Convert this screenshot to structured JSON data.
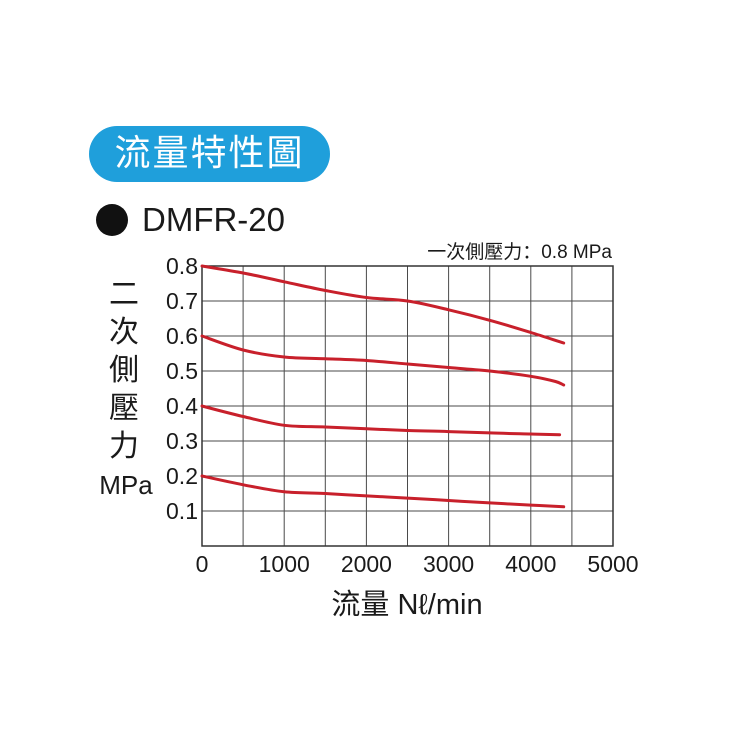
{
  "header": {
    "badge_title": "流量特性圖",
    "model": "DMFR-20"
  },
  "chart_data": {
    "type": "line",
    "annotation": "一次側壓力：0.8 MPa",
    "ylabel_chars": [
      "二",
      "次",
      "側",
      "壓",
      "力"
    ],
    "ylabel_unit": "MPa",
    "xlabel": "流量 Nℓ/min",
    "xlim": [
      0,
      5000
    ],
    "ylim": [
      0,
      0.8
    ],
    "xticks": [
      0,
      1000,
      2000,
      3000,
      4000,
      5000
    ],
    "xtick_labels": [
      "0",
      "1000",
      "2000",
      "3000",
      "4000",
      "5000"
    ],
    "yticks": [
      0.1,
      0.2,
      0.3,
      0.4,
      0.5,
      0.6,
      0.7,
      0.8
    ],
    "ytick_labels": [
      "0.1",
      "0.2",
      "0.3",
      "0.4",
      "0.5",
      "0.6",
      "0.7",
      "0.8"
    ],
    "grid": true,
    "series_color": "#c8202b",
    "series": [
      {
        "x": [
          0,
          500,
          1000,
          1500,
          2000,
          2500,
          3000,
          3500,
          4000,
          4400
        ],
        "y": [
          0.8,
          0.78,
          0.755,
          0.73,
          0.71,
          0.7,
          0.675,
          0.645,
          0.61,
          0.58
        ]
      },
      {
        "x": [
          0,
          500,
          1000,
          1500,
          2000,
          2500,
          3000,
          3500,
          4000,
          4300,
          4400
        ],
        "y": [
          0.6,
          0.56,
          0.54,
          0.535,
          0.53,
          0.52,
          0.51,
          0.5,
          0.485,
          0.47,
          0.46
        ]
      },
      {
        "x": [
          0,
          500,
          1000,
          1500,
          2000,
          2500,
          3000,
          3500,
          4000,
          4350
        ],
        "y": [
          0.4,
          0.37,
          0.345,
          0.34,
          0.335,
          0.33,
          0.327,
          0.323,
          0.32,
          0.318
        ]
      },
      {
        "x": [
          0,
          500,
          1000,
          1500,
          2000,
          2500,
          3000,
          3500,
          4000,
          4400
        ],
        "y": [
          0.2,
          0.175,
          0.155,
          0.15,
          0.143,
          0.137,
          0.13,
          0.123,
          0.117,
          0.112
        ]
      }
    ]
  }
}
